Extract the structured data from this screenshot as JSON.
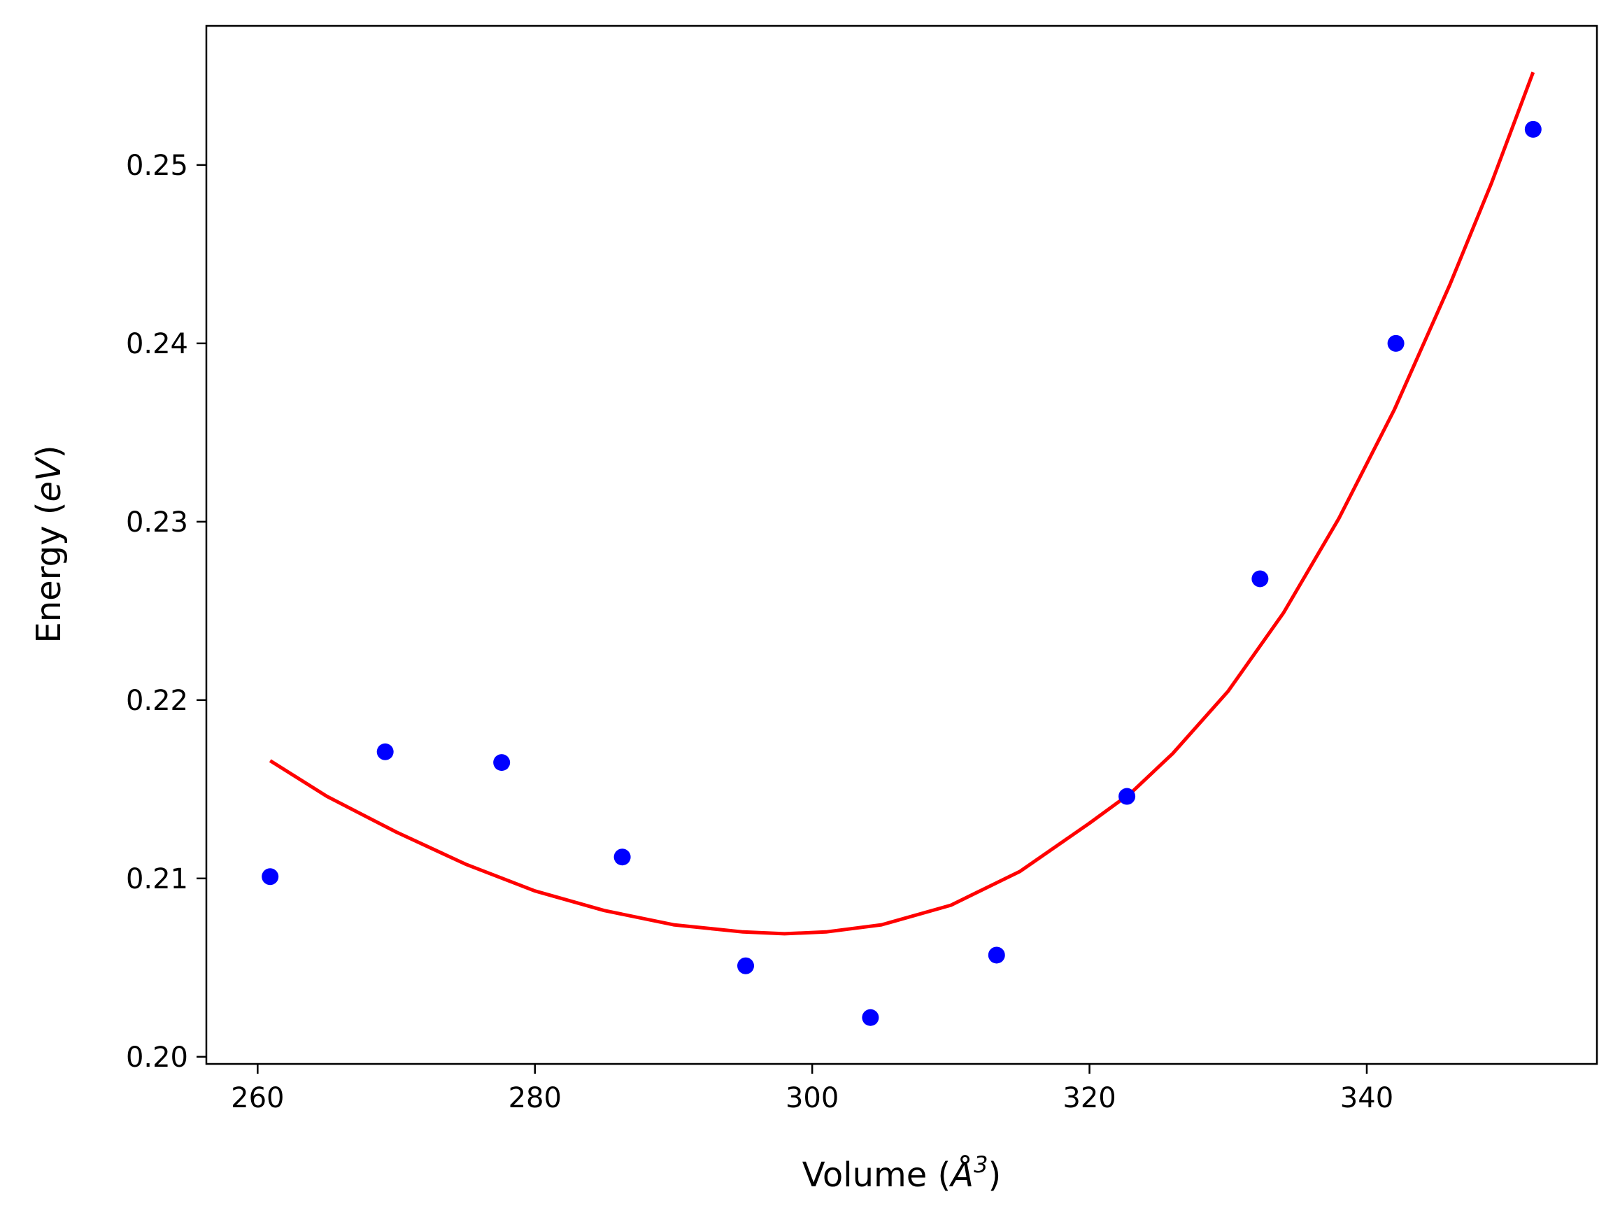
{
  "chart_data": {
    "type": "scatter",
    "xlabel": "Volume (Å³)",
    "ylabel": "Energy (eV)",
    "xlabel_parts": {
      "prefix": "Volume (",
      "symbol": "Å",
      "exponent": "3",
      "suffix": ")"
    },
    "ylabel_parts": {
      "prefix": "Energy (",
      "unit": "eV",
      "suffix": ")"
    },
    "xlim": [
      256.3,
      356.6
    ],
    "ylim": [
      0.1996,
      0.2578
    ],
    "x_ticks": [
      {
        "value": 260,
        "label": "260"
      },
      {
        "value": 280,
        "label": "280"
      },
      {
        "value": 300,
        "label": "300"
      },
      {
        "value": 320,
        "label": "320"
      },
      {
        "value": 340,
        "label": "340"
      }
    ],
    "y_ticks": [
      {
        "value": 0.2,
        "label": "0.20"
      },
      {
        "value": 0.21,
        "label": "0.21"
      },
      {
        "value": 0.22,
        "label": "0.22"
      },
      {
        "value": 0.23,
        "label": "0.23"
      },
      {
        "value": 0.24,
        "label": "0.24"
      },
      {
        "value": 0.25,
        "label": "0.25"
      }
    ],
    "grid": false,
    "series": [
      {
        "kind": "scatter",
        "color": "#0000ff",
        "points": [
          {
            "x": 260.9,
            "y": 0.2101
          },
          {
            "x": 269.2,
            "y": 0.2171
          },
          {
            "x": 277.6,
            "y": 0.2165
          },
          {
            "x": 286.3,
            "y": 0.2112
          },
          {
            "x": 295.2,
            "y": 0.2051
          },
          {
            "x": 304.2,
            "y": 0.2022
          },
          {
            "x": 313.3,
            "y": 0.2057
          },
          {
            "x": 322.7,
            "y": 0.2146
          },
          {
            "x": 332.3,
            "y": 0.2268
          },
          {
            "x": 342.1,
            "y": 0.24
          },
          {
            "x": 352.0,
            "y": 0.252
          }
        ]
      },
      {
        "kind": "line",
        "color": "#ff0000",
        "points": [
          {
            "x": 260.9,
            "y": 0.2166
          },
          {
            "x": 265.0,
            "y": 0.2146
          },
          {
            "x": 270.0,
            "y": 0.2126
          },
          {
            "x": 275.0,
            "y": 0.2108
          },
          {
            "x": 280.0,
            "y": 0.2093
          },
          {
            "x": 285.0,
            "y": 0.2082
          },
          {
            "x": 290.0,
            "y": 0.2074
          },
          {
            "x": 295.0,
            "y": 0.207
          },
          {
            "x": 298.0,
            "y": 0.2069
          },
          {
            "x": 301.0,
            "y": 0.207
          },
          {
            "x": 305.0,
            "y": 0.2074
          },
          {
            "x": 310.0,
            "y": 0.2085
          },
          {
            "x": 315.0,
            "y": 0.2104
          },
          {
            "x": 320.0,
            "y": 0.2131
          },
          {
            "x": 323.0,
            "y": 0.2148
          },
          {
            "x": 326.0,
            "y": 0.217
          },
          {
            "x": 330.0,
            "y": 0.2205
          },
          {
            "x": 334.0,
            "y": 0.2249
          },
          {
            "x": 338.0,
            "y": 0.2302
          },
          {
            "x": 342.0,
            "y": 0.2363
          },
          {
            "x": 346.0,
            "y": 0.2433
          },
          {
            "x": 349.0,
            "y": 0.249
          },
          {
            "x": 352.0,
            "y": 0.2552
          }
        ]
      }
    ]
  }
}
